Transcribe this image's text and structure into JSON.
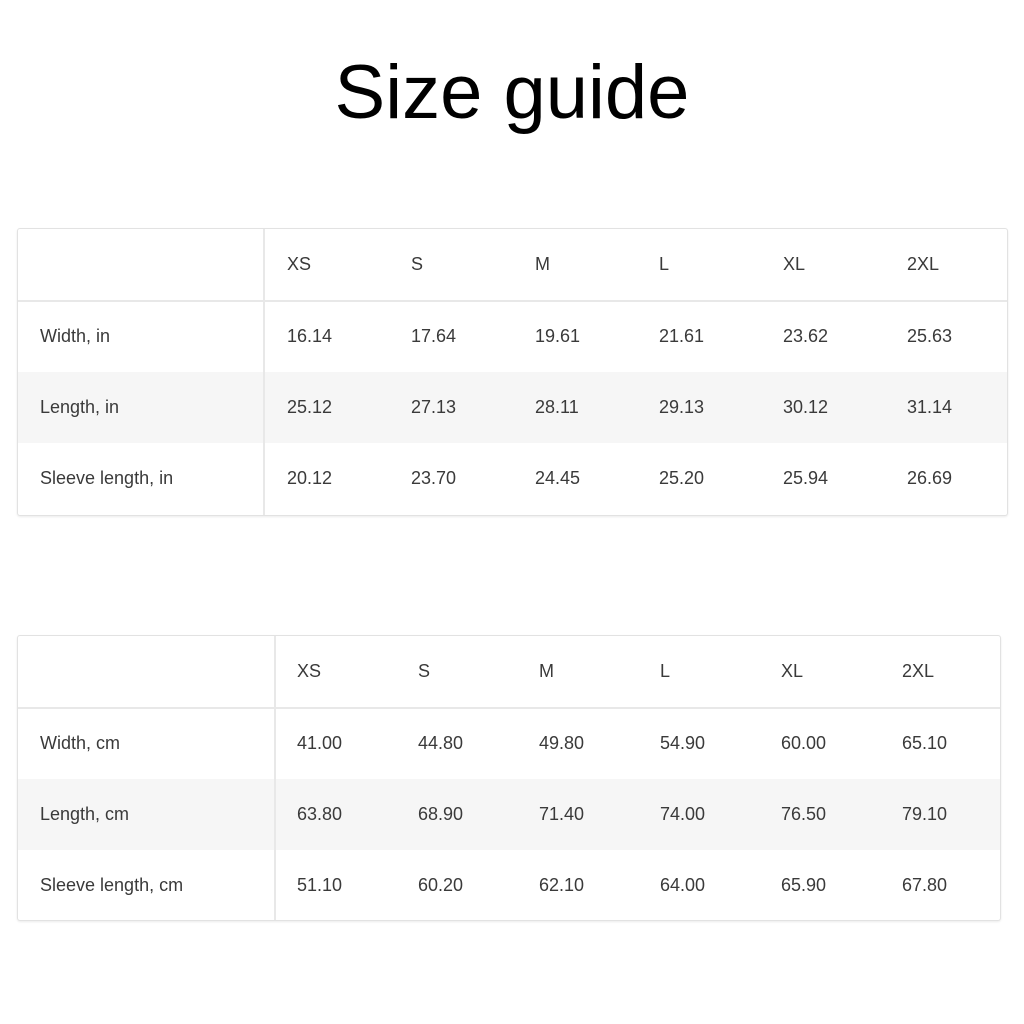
{
  "title": "Size guide",
  "tables": [
    {
      "sizes": [
        "XS",
        "S",
        "M",
        "L",
        "XL",
        "2XL"
      ],
      "rows": [
        {
          "label": "Width, in",
          "values": [
            "16.14",
            "17.64",
            "19.61",
            "21.61",
            "23.62",
            "25.63"
          ]
        },
        {
          "label": "Length, in",
          "values": [
            "25.12",
            "27.13",
            "28.11",
            "29.13",
            "30.12",
            "31.14"
          ]
        },
        {
          "label": "Sleeve length, in",
          "values": [
            "20.12",
            "23.70",
            "24.45",
            "25.20",
            "25.94",
            "26.69"
          ]
        }
      ]
    },
    {
      "sizes": [
        "XS",
        "S",
        "M",
        "L",
        "XL",
        "2XL"
      ],
      "rows": [
        {
          "label": "Width, cm",
          "values": [
            "41.00",
            "44.80",
            "49.80",
            "54.90",
            "60.00",
            "65.10"
          ]
        },
        {
          "label": "Length, cm",
          "values": [
            "63.80",
            "68.90",
            "71.40",
            "74.00",
            "76.50",
            "79.10"
          ]
        },
        {
          "label": "Sleeve length, cm",
          "values": [
            "51.10",
            "60.20",
            "62.10",
            "64.00",
            "65.90",
            "67.80"
          ]
        }
      ]
    }
  ]
}
